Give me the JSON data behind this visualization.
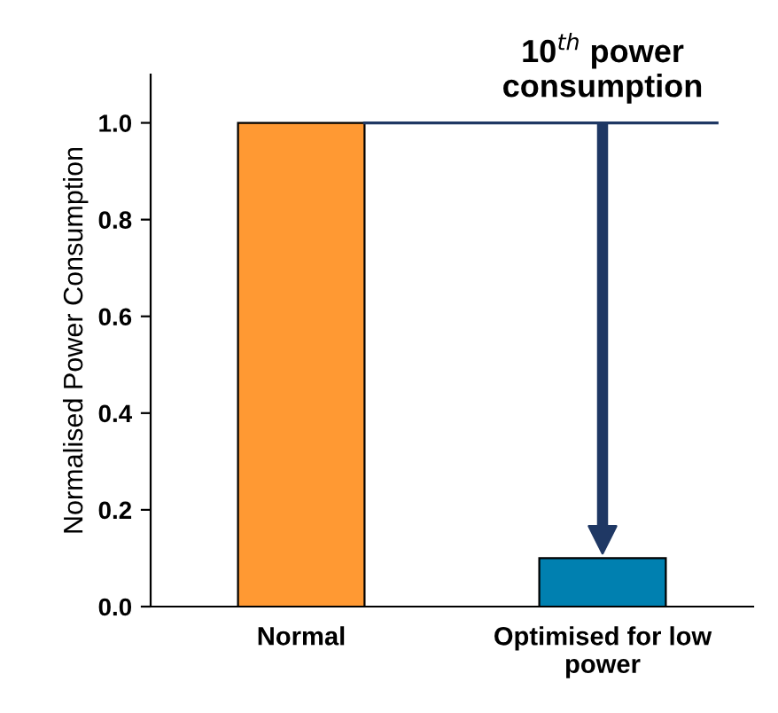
{
  "chart_data": {
    "type": "bar",
    "ylabel": "Normalised Power Consumption",
    "categories": [
      "Normal",
      "Optimised for low\npower"
    ],
    "values": [
      1.0,
      0.1
    ],
    "colors": [
      "#ff9933",
      "#0080b0"
    ],
    "ylim": [
      0,
      1.1
    ],
    "yticks": [
      {
        "value": 0,
        "label": "0.0"
      },
      {
        "value": 0.2,
        "label": "0.2"
      },
      {
        "value": 0.4,
        "label": "0.4"
      },
      {
        "value": 0.6,
        "label": "0.6"
      },
      {
        "value": 0.8,
        "label": "0.8"
      },
      {
        "value": 1.0,
        "label": "1.0"
      }
    ],
    "annotations": [
      "10$^{th}$ power\nconsumption"
    ],
    "ref_lines": [
      {
        "axis": "y",
        "value": 1.0,
        "color": "#1f3864"
      }
    ],
    "grid": false,
    "legend": false
  }
}
